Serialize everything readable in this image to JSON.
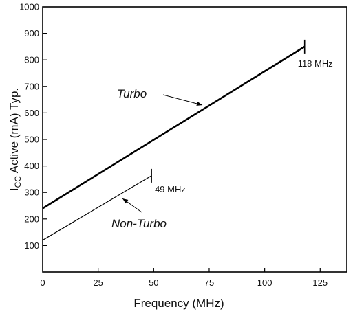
{
  "chart_data": {
    "type": "line",
    "xlabel": "Frequency (MHz)",
    "ylabel_main": "I",
    "ylabel_sub": "CC",
    "ylabel_rest": " Active (mA) Typ.",
    "xlim": [
      0,
      137
    ],
    "ylim": [
      0,
      1000
    ],
    "x_ticks": [
      "0",
      "25",
      "50",
      "75",
      "100",
      "125"
    ],
    "y_ticks": [
      "100",
      "200",
      "300",
      "400",
      "500",
      "600",
      "700",
      "800",
      "900",
      "1000"
    ],
    "grid": false,
    "series": [
      {
        "name": "Turbo",
        "color": "#000000",
        "x": [
          0,
          118
        ],
        "y": [
          240,
          850
        ],
        "end_label": "118 MHz"
      },
      {
        "name": "Non-Turbo",
        "color": "#000000",
        "x": [
          0,
          49
        ],
        "y": [
          120,
          363
        ],
        "end_label": "49 MHz"
      }
    ]
  }
}
